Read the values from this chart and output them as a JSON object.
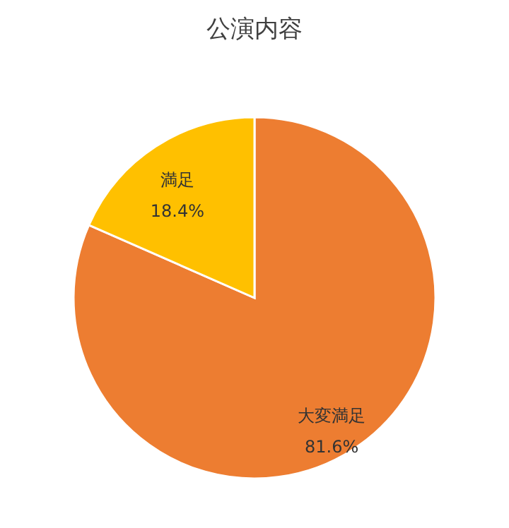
{
  "chart_data": {
    "type": "pie",
    "title": "公演内容",
    "categories": [
      "大変満足",
      "満足"
    ],
    "values": [
      81.6,
      18.4
    ],
    "colors": [
      "#ed7d31",
      "#ffc000"
    ],
    "value_labels": [
      "81.6%",
      "18.4%"
    ],
    "legend": false
  }
}
